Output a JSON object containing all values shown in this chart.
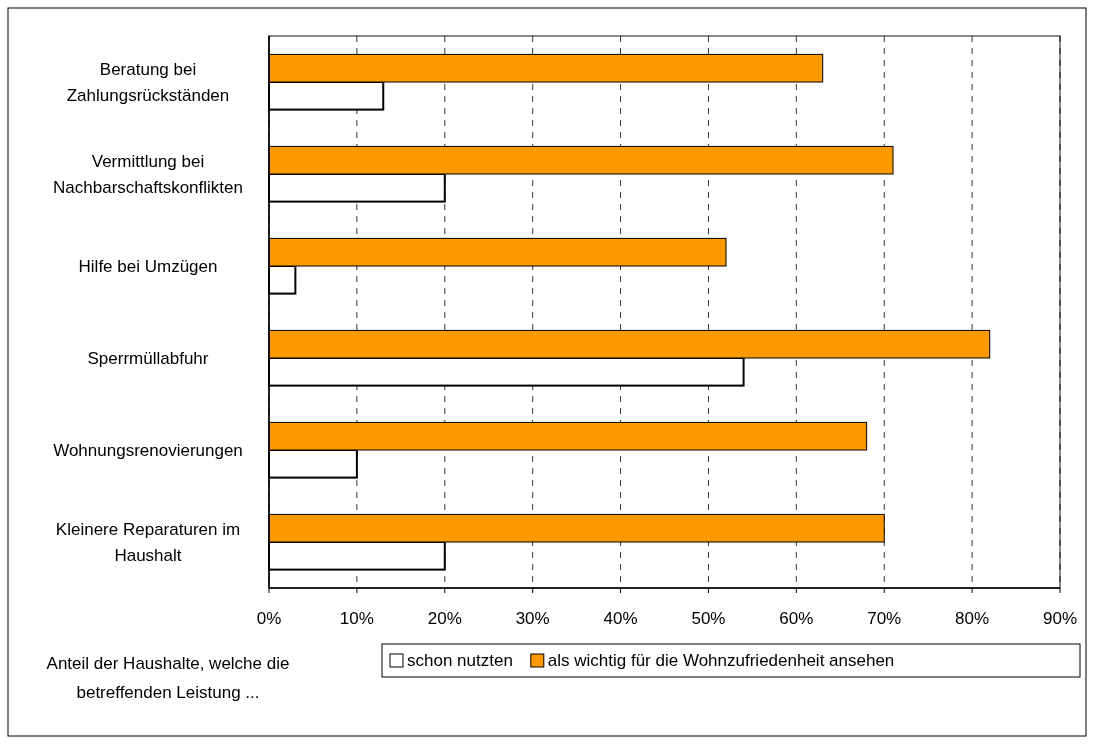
{
  "chart_data": {
    "type": "bar",
    "orientation": "horizontal",
    "categories": [
      "Beratung bei Zahlungsrückständen",
      "Vermittlung bei Nachbarschaftskonflikten",
      "Hilfe bei Umzügen",
      "Sperrmüllabfuhr",
      "Wohnungsrenovierungen",
      "Kleinere Reparaturen im Haushalt"
    ],
    "series": [
      {
        "name": "schon nutzten",
        "color": "#ffffff",
        "values": [
          13,
          20,
          3,
          54,
          10,
          20
        ]
      },
      {
        "name": "als wichtig für die Wohnzufriedenheit ansehen",
        "color": "#ff9900",
        "values": [
          63,
          71,
          52,
          82,
          68,
          70
        ]
      }
    ],
    "xlim": [
      0,
      90
    ],
    "xticks": [
      {
        "value": 0,
        "label": "0%"
      },
      {
        "value": 10,
        "label": "10%"
      },
      {
        "value": 20,
        "label": "20%"
      },
      {
        "value": 30,
        "label": "30%"
      },
      {
        "value": 40,
        "label": "40%"
      },
      {
        "value": 50,
        "label": "50%"
      },
      {
        "value": 60,
        "label": "60%"
      },
      {
        "value": 70,
        "label": "70%"
      },
      {
        "value": 80,
        "label": "80%"
      },
      {
        "value": 90,
        "label": "90%"
      }
    ],
    "grid": "x",
    "legend": "bottom",
    "legend_title": "Anteil der Haushalte, welche die betreffenden Leistung ..."
  }
}
